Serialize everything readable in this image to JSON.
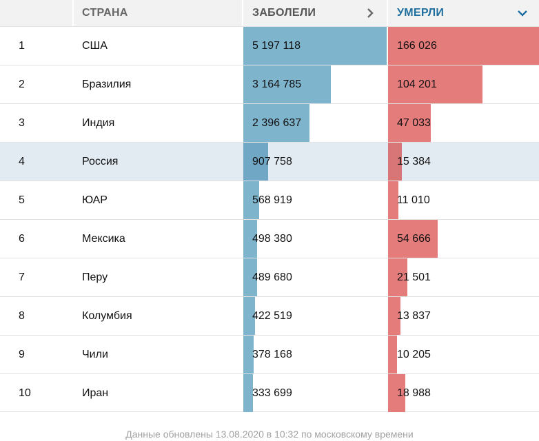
{
  "table": {
    "headers": {
      "country": "СТРАНА",
      "cases": "ЗАБОЛЕЛИ",
      "deaths": "УМЕРЛИ"
    },
    "icons": {
      "cases_sort": "chevron-right-icon",
      "deaths_sort": "chevron-down-icon"
    },
    "highlighted_country": "Россия",
    "max_cases": 5197118,
    "max_deaths": 166026,
    "rows": [
      {
        "rank": "1",
        "country": "США",
        "cases": "5 197 118",
        "deaths": "166 026",
        "cases_n": 5197118,
        "deaths_n": 166026
      },
      {
        "rank": "2",
        "country": "Бразилия",
        "cases": "3 164 785",
        "deaths": "104 201",
        "cases_n": 3164785,
        "deaths_n": 104201
      },
      {
        "rank": "3",
        "country": "Индия",
        "cases": "2 396 637",
        "deaths": "47 033",
        "cases_n": 2396637,
        "deaths_n": 47033
      },
      {
        "rank": "4",
        "country": "Россия",
        "cases": "907 758",
        "deaths": "15 384",
        "cases_n": 907758,
        "deaths_n": 15384
      },
      {
        "rank": "5",
        "country": "ЮАР",
        "cases": "568 919",
        "deaths": "11 010",
        "cases_n": 568919,
        "deaths_n": 11010
      },
      {
        "rank": "6",
        "country": "Мексика",
        "cases": "498 380",
        "deaths": "54 666",
        "cases_n": 498380,
        "deaths_n": 54666
      },
      {
        "rank": "7",
        "country": "Перу",
        "cases": "489 680",
        "deaths": "21 501",
        "cases_n": 489680,
        "deaths_n": 21501
      },
      {
        "rank": "8",
        "country": "Колумбия",
        "cases": "422 519",
        "deaths": "13 837",
        "cases_n": 422519,
        "deaths_n": 13837
      },
      {
        "rank": "9",
        "country": "Чили",
        "cases": "378 168",
        "deaths": "10 205",
        "cases_n": 378168,
        "deaths_n": 10205
      },
      {
        "rank": "10",
        "country": "Иран",
        "cases": "333 699",
        "deaths": "18 988",
        "cases_n": 333699,
        "deaths_n": 18988
      }
    ]
  },
  "colors": {
    "cases_bar": "#7fb4cd",
    "deaths_bar": "#e57c7c",
    "highlight_row": "#e2eaf2",
    "active_header": "#1e6f9f"
  },
  "footer": {
    "text": "Данные обновлены 13.08.2020 в 10:32 по московскому времени"
  }
}
